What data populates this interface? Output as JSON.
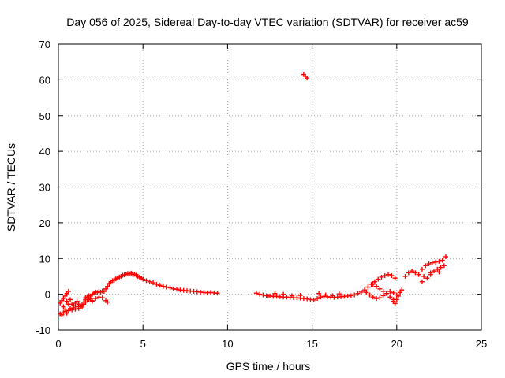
{
  "chart_data": {
    "type": "scatter",
    "title": "Day 056 of 2025, Sidereal Day-to-day VTEC variation (SDTVAR) for receiver ac59",
    "xlabel": "GPS time / hours",
    "ylabel": "SDTVAR / TECUs",
    "xlim": [
      0,
      25
    ],
    "ylim": [
      -10,
      70
    ],
    "xticks": [
      0,
      5,
      10,
      15,
      20,
      25
    ],
    "yticks": [
      -10,
      0,
      10,
      20,
      30,
      40,
      50,
      60,
      70
    ],
    "grid": true,
    "legend": "none",
    "marker": "+",
    "marker_color": "#ff0000",
    "series": [
      {
        "name": "SDTVAR",
        "x": [
          0.1,
          0.2,
          0.3,
          0.4,
          0.5,
          0.6,
          0.7,
          0.8,
          0.9,
          1.0,
          1.1,
          1.2,
          1.3,
          1.4,
          1.5,
          1.6,
          1.7,
          1.8,
          1.9,
          2.0,
          2.1,
          2.2,
          2.3,
          2.4,
          2.5,
          2.6,
          2.7,
          2.8,
          2.9,
          3.0,
          3.1,
          3.2,
          3.3,
          3.4,
          3.5,
          3.6,
          3.7,
          3.8,
          3.9,
          4.0,
          4.1,
          4.2,
          4.3,
          4.4,
          4.5,
          4.6,
          4.7,
          4.8,
          4.9,
          5.0,
          5.2,
          5.4,
          5.6,
          5.8,
          6.0,
          6.2,
          6.4,
          6.6,
          6.8,
          7.0,
          7.2,
          7.4,
          7.6,
          7.8,
          8.0,
          8.2,
          8.4,
          8.6,
          8.8,
          9.0,
          9.2,
          9.4,
          0.1,
          0.2,
          0.3,
          0.4,
          0.5,
          0.6,
          0.7,
          0.8,
          0.9,
          1.0,
          1.1,
          1.2,
          1.3,
          1.4,
          1.5,
          1.6,
          1.7,
          1.8,
          1.9,
          2.0,
          0.3,
          0.4,
          0.5,
          0.6,
          1.6,
          1.8,
          2.0,
          2.2,
          2.4,
          2.6,
          2.8,
          2.9,
          11.7,
          11.9,
          12.1,
          12.3,
          12.5,
          12.7,
          12.9,
          13.1,
          13.3,
          13.5,
          13.7,
          13.9,
          14.1,
          14.3,
          14.5,
          14.7,
          14.9,
          15.1,
          15.3,
          15.5,
          15.7,
          15.9,
          16.1,
          16.3,
          16.5,
          16.7,
          16.9,
          17.1,
          17.3,
          17.5,
          17.7,
          17.9,
          18.1,
          18.3,
          18.5,
          18.7,
          18.9,
          19.1,
          19.3,
          19.5,
          19.7,
          19.9,
          12.4,
          12.8,
          13.3,
          13.8,
          14.3,
          15.4,
          15.8,
          16.2,
          16.6,
          18.2,
          18.4,
          18.6,
          18.8,
          19.0,
          19.2,
          19.4,
          19.6,
          19.8,
          20.0,
          19.8,
          19.6,
          19.4,
          19.2,
          19.0,
          18.8,
          18.6,
          19.8,
          19.9,
          20.0,
          20.1,
          20.2,
          20.3,
          14.5,
          14.6,
          14.7,
          20.5,
          20.7,
          20.9,
          21.1,
          21.3,
          21.5,
          21.7,
          21.9,
          22.1,
          22.3,
          22.5,
          22.7,
          22.9,
          21.6,
          21.8,
          22.0,
          22.2,
          22.4,
          22.6,
          22.8,
          21.5,
          22.0,
          22.5
        ],
        "y": [
          -5.5,
          -5.8,
          -5.2,
          -4.8,
          -5.3,
          -4.6,
          -4.0,
          -4.4,
          -3.8,
          -4.2,
          -3.5,
          -4.0,
          -3.2,
          -3.6,
          -2.8,
          -2.2,
          -1.5,
          -1.0,
          -0.5,
          0.0,
          0.3,
          0.6,
          0.5,
          0.8,
          0.6,
          0.9,
          0.8,
          1.5,
          2.2,
          3.0,
          3.4,
          3.8,
          4.0,
          4.3,
          4.5,
          4.8,
          5.0,
          5.3,
          5.4,
          5.6,
          5.8,
          5.7,
          5.9,
          5.5,
          5.6,
          5.3,
          5.0,
          4.8,
          4.5,
          4.2,
          3.8,
          3.5,
          3.2,
          2.8,
          2.5,
          2.2,
          2.0,
          1.8,
          1.5,
          1.4,
          1.2,
          1.1,
          1.0,
          0.9,
          0.8,
          0.7,
          0.6,
          0.5,
          0.4,
          0.5,
          0.4,
          0.3,
          -2.5,
          -1.8,
          -1.2,
          -0.5,
          0.2,
          0.8,
          -1.5,
          -2.8,
          -3.2,
          -2.5,
          -2.0,
          -2.8,
          -3.5,
          -3.0,
          -2.2,
          -1.5,
          -0.8,
          -0.4,
          -1.2,
          -1.8,
          -3.5,
          -4.2,
          -2.0,
          -2.8,
          -1.0,
          -1.5,
          -2.0,
          -1.2,
          -0.8,
          -1.0,
          -1.8,
          -2.2,
          0.3,
          0.0,
          -0.2,
          -0.4,
          -0.5,
          -0.6,
          -0.6,
          -0.7,
          -0.8,
          -0.8,
          -0.9,
          -1.0,
          -1.0,
          -1.1,
          -1.2,
          -1.3,
          -1.5,
          -1.6,
          -1.2,
          -0.8,
          -0.6,
          -0.7,
          -0.8,
          -0.9,
          -0.8,
          -0.7,
          -0.6,
          -0.5,
          -0.4,
          -0.2,
          0.2,
          0.6,
          1.2,
          2.0,
          2.8,
          3.5,
          4.2,
          4.8,
          5.2,
          5.5,
          5.2,
          4.5,
          -0.5,
          0.2,
          0.0,
          -0.4,
          -0.3,
          0.2,
          -0.2,
          -0.4,
          0.1,
          0.5,
          -0.2,
          -0.8,
          -1.2,
          -1.0,
          -0.4,
          0.2,
          0.8,
          0.4,
          -0.2,
          -1.5,
          -0.8,
          0.2,
          0.8,
          1.5,
          2.2,
          2.8,
          -2.0,
          -2.6,
          -1.5,
          -0.5,
          0.5,
          1.2,
          61.5,
          61.0,
          60.5,
          5.0,
          6.0,
          6.5,
          6.0,
          5.5,
          7.0,
          8.0,
          8.5,
          8.8,
          9.0,
          9.2,
          9.5,
          10.5,
          5.0,
          4.5,
          6.0,
          6.5,
          7.0,
          7.5,
          8.0,
          3.5,
          5.5,
          6.2
        ]
      }
    ]
  }
}
